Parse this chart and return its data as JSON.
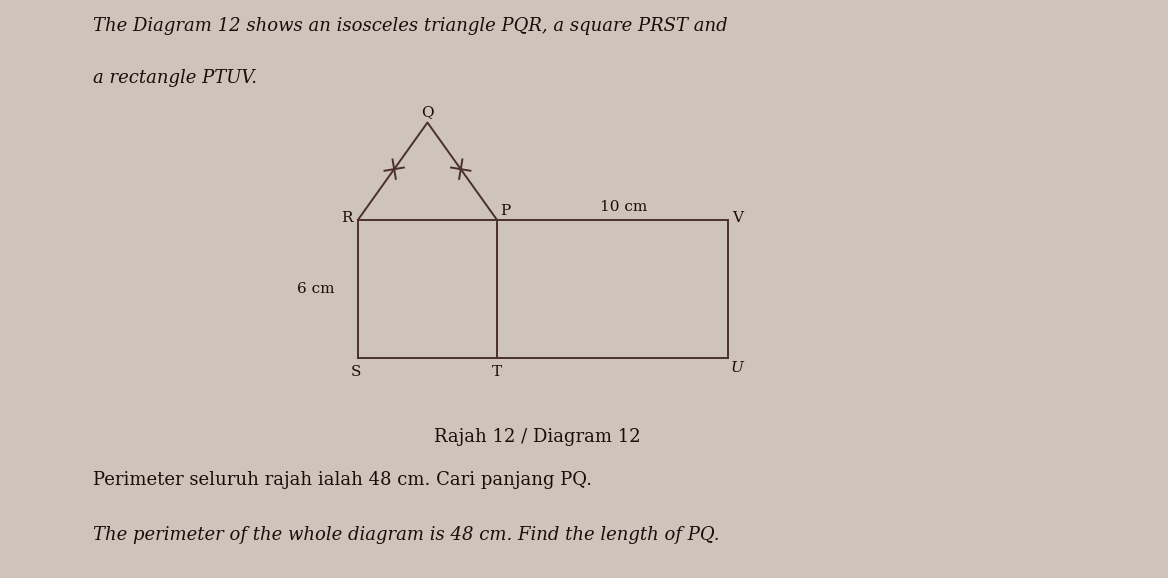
{
  "title_line1": "The Diagram 12 shows an isosceles triangle PQR, a square PRST and",
  "title_line2": "a rectangle PTUV.",
  "diagram_caption": "Rajah 12 / Diagram 12",
  "bottom_text_malay": "Perimeter seluruh rajah ialah 48 cm. Cari panjang PQ.",
  "bottom_text_english": "The perimeter of the whole diagram is 48 cm. Find the length of PQ.",
  "bg_color": "#cec4bc",
  "line_color": "#4a3028",
  "font_color": "#1a0e08",
  "label_6cm": "6 cm",
  "label_10cm": "10 cm",
  "points": {
    "R": [
      0,
      0
    ],
    "P": [
      6,
      0
    ],
    "Q": [
      3,
      4.2
    ],
    "S": [
      0,
      -6
    ],
    "T": [
      6,
      -6
    ],
    "V": [
      16,
      0
    ],
    "U": [
      16,
      -6
    ]
  }
}
